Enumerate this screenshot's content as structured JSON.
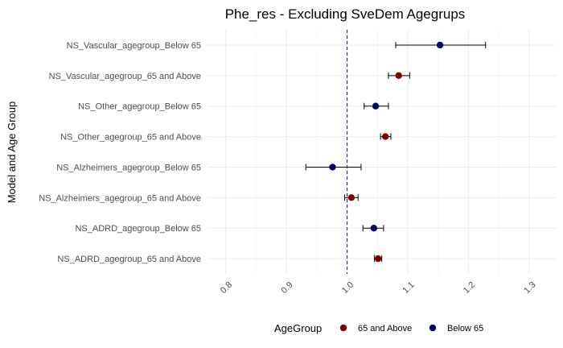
{
  "chart_data": {
    "type": "scatter",
    "subtype": "forest-plot",
    "title": "Phe_res - Excluding SveDem Agegrups",
    "xlabel": "",
    "ylabel": "Model and Age Group",
    "xlim": [
      0.77,
      1.345
    ],
    "xticks": [
      "0.8",
      "0.9",
      "1.0",
      "1.1",
      "1.2",
      "1.3"
    ],
    "reference_line": 1.0,
    "reference_line_color": "#0000cc",
    "grid": true,
    "legend": {
      "title": "AgeGroup",
      "placement": "bottom",
      "entries": [
        {
          "label": "65 and Above",
          "color": "#800000"
        },
        {
          "label": "Below 65",
          "color": "#00006b"
        }
      ]
    },
    "categories": [
      "NS_Vascular_agegroup_Below 65",
      "NS_Vascular_agegroup_65 and Above",
      "NS_Other_agegroup_Below 65",
      "NS_Other_agegroup_65 and Above",
      "NS_Alzheimers_agegroup_Below 65",
      "NS_Alzheimers_agegroup_65 and Above",
      "NS_ADRD_agegroup_Below 65",
      "NS_ADRD_agegroup_65 and Above"
    ],
    "points": [
      {
        "label": "NS_Vascular_agegroup_Below 65",
        "group": "Below 65",
        "estimate": 1.153,
        "lower": 1.08,
        "upper": 1.228
      },
      {
        "label": "NS_Vascular_agegroup_65 and Above",
        "group": "65 and Above",
        "estimate": 1.085,
        "lower": 1.068,
        "upper": 1.103
      },
      {
        "label": "NS_Other_agegroup_Below 65",
        "group": "Below 65",
        "estimate": 1.047,
        "lower": 1.028,
        "upper": 1.068
      },
      {
        "label": "NS_Other_agegroup_65 and Above",
        "group": "65 and Above",
        "estimate": 1.063,
        "lower": 1.055,
        "upper": 1.072
      },
      {
        "label": "NS_Alzheimers_agegroup_Below 65",
        "group": "Below 65",
        "estimate": 0.976,
        "lower": 0.932,
        "upper": 1.023
      },
      {
        "label": "NS_Alzheimers_agegroup_65 and Above",
        "group": "65 and Above",
        "estimate": 1.007,
        "lower": 0.996,
        "upper": 1.018
      },
      {
        "label": "NS_ADRD_agegroup_Below 65",
        "group": "Below 65",
        "estimate": 1.044,
        "lower": 1.026,
        "upper": 1.06
      },
      {
        "label": "NS_ADRD_agegroup_65 and Above",
        "group": "65 and Above",
        "estimate": 1.051,
        "lower": 1.045,
        "upper": 1.057
      }
    ]
  }
}
